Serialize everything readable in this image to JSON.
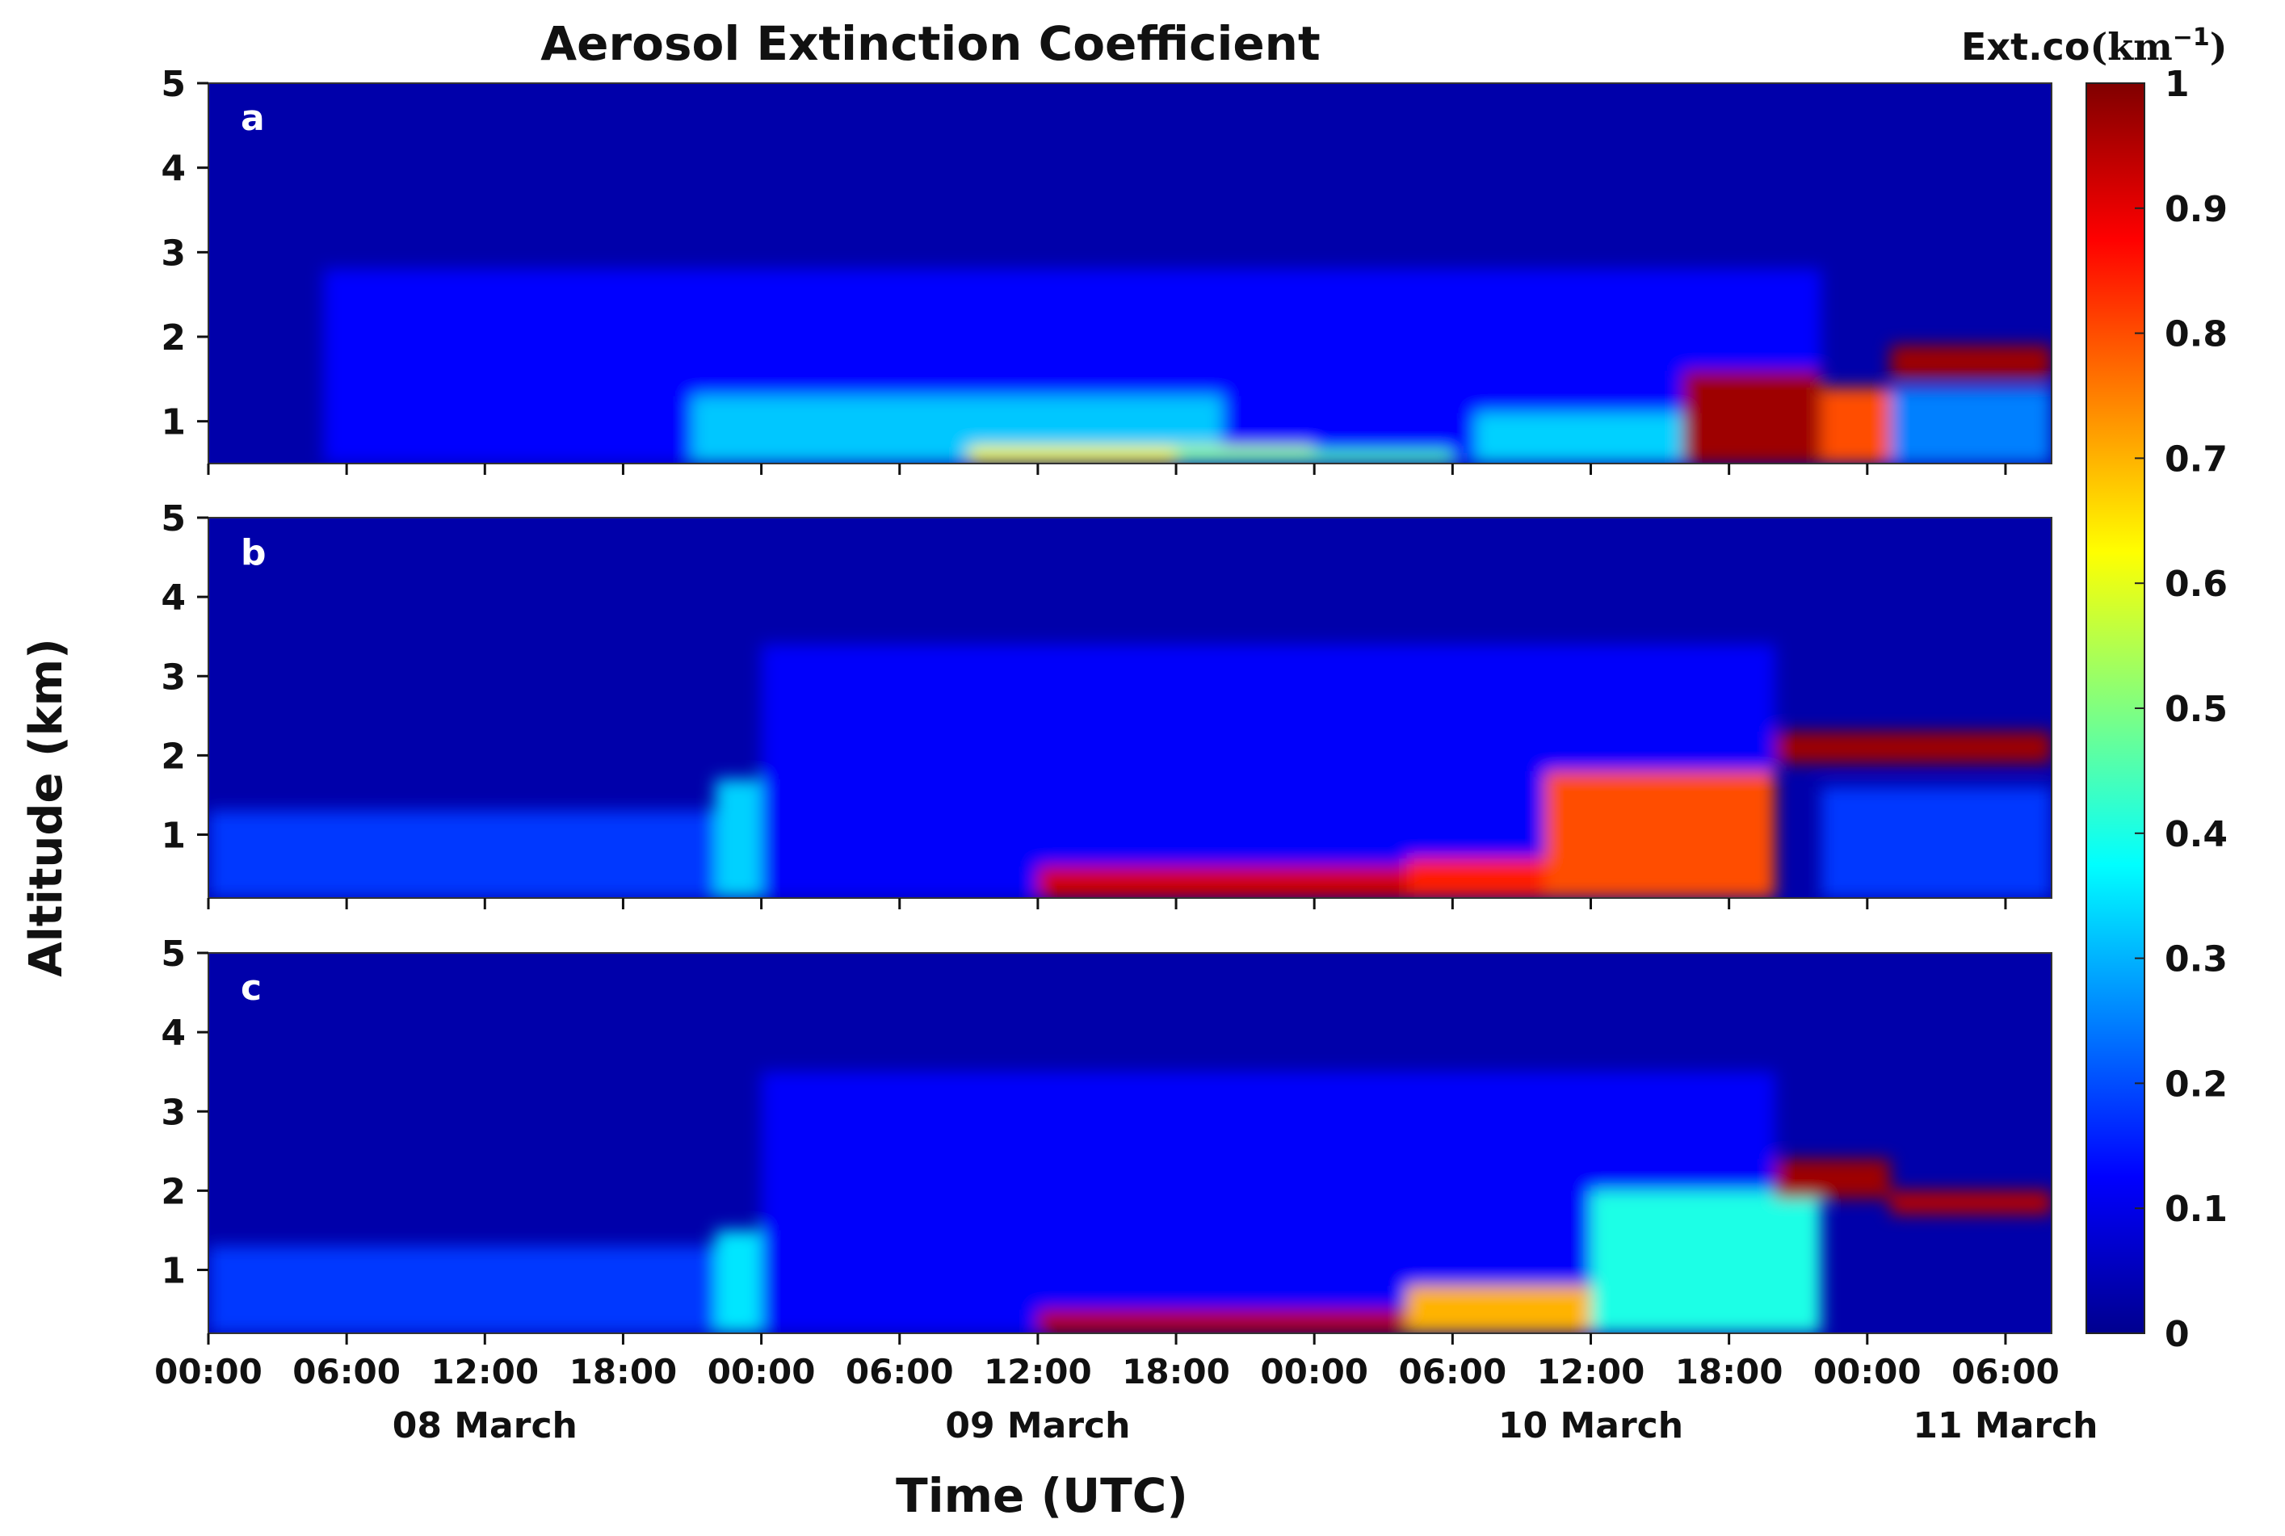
{
  "chart_data": {
    "type": "heatmap",
    "title": "Aerosol Extinction Coefficient",
    "xlabel": "Time (UTC)",
    "ylabel": "Altitude (km)",
    "colorbar": {
      "label_prefix": "Ext.co",
      "label_unit": "(km",
      "label_exp": "−1",
      "label_close": ")",
      "range": [
        0,
        1
      ],
      "ticks": [
        0,
        0.1,
        0.2,
        0.3,
        0.4,
        0.5,
        0.6,
        0.7,
        0.8,
        0.9,
        1
      ],
      "tick_labels": [
        "0",
        "0.1",
        "0.2",
        "0.3",
        "0.4",
        "0.5",
        "0.6",
        "0.7",
        "0.8",
        "0.9",
        "1"
      ],
      "colormap": "jet",
      "stops": [
        "#00008f",
        "#0000ff",
        "#0080ff",
        "#00ffff",
        "#80ff80",
        "#ffff00",
        "#ff8000",
        "#ff0000",
        "#800000"
      ]
    },
    "x_range_hours": [
      0,
      80
    ],
    "x_ticks_hours": [
      0,
      6,
      12,
      18,
      24,
      30,
      36,
      42,
      48,
      54,
      60,
      66,
      72,
      78
    ],
    "x_tick_labels": [
      "00:00",
      "06:00",
      "12:00",
      "18:00",
      "00:00",
      "06:00",
      "12:00",
      "18:00",
      "00:00",
      "06:00",
      "12:00",
      "18:00",
      "00:00",
      "06:00"
    ],
    "date_labels": [
      {
        "label": "08 March",
        "hour": 12
      },
      {
        "label": "09 March",
        "hour": 36
      },
      {
        "label": "10 March",
        "hour": 60
      },
      {
        "label": "11 March",
        "hour": 78
      }
    ],
    "y_range_km": [
      0.2,
      5
    ],
    "y_ticks_km": [
      1,
      2,
      3,
      4,
      5
    ],
    "y_tick_labels": [
      "1",
      "2",
      "3",
      "4",
      "5"
    ],
    "panels": [
      {
        "label": "a",
        "bottom_km": 0.5,
        "background_value": 0.03,
        "features": [
          {
            "desc": "diffuse layer up to ~3 km",
            "t0": 5,
            "t1": 70,
            "z0": 0.5,
            "z1": 2.8,
            "value": 0.13
          },
          {
            "desc": "boundary layer aerosol",
            "t0": 21,
            "t1": 44,
            "z0": 0.5,
            "z1": 1.3,
            "value": 0.32
          },
          {
            "desc": "near-surface layer",
            "t0": 33,
            "t1": 48,
            "z0": 0.5,
            "z1": 0.7,
            "value": 0.62
          },
          {
            "desc": "near-surface layer",
            "t0": 42,
            "t1": 54,
            "z0": 0.5,
            "z1": 0.65,
            "value": 0.45
          },
          {
            "desc": "lofted aerosol",
            "t0": 55,
            "t1": 64,
            "z0": 0.5,
            "z1": 1.1,
            "value": 0.33
          },
          {
            "desc": "dense aerosol plume",
            "t0": 64,
            "t1": 70,
            "z0": 0.5,
            "z1": 1.6,
            "value": 0.97
          },
          {
            "desc": "dense aerosol plume",
            "t0": 70,
            "t1": 74,
            "z0": 0.5,
            "z1": 1.4,
            "value": 0.8
          },
          {
            "desc": "elevated layer",
            "t0": 73,
            "t1": 80,
            "z0": 1.5,
            "z1": 1.9,
            "value": 0.97
          },
          {
            "desc": "below elevated layer",
            "t0": 73,
            "t1": 80,
            "z0": 0.5,
            "z1": 1.4,
            "value": 0.25
          }
        ]
      },
      {
        "label": "b",
        "bottom_km": 0.2,
        "background_value": 0.03,
        "features": [
          {
            "desc": "residual layer",
            "t0": 0,
            "t1": 22,
            "z0": 0.2,
            "z1": 1.3,
            "value": 0.18
          },
          {
            "desc": "residual layer",
            "t0": 22,
            "t1": 37,
            "z0": 0.2,
            "z1": 1.7,
            "value": 0.33
          },
          {
            "desc": "boundary layer aerosol",
            "t0": 28,
            "t1": 38,
            "z0": 0.2,
            "z1": 0.8,
            "value": 0.55
          },
          {
            "desc": "diffuse layer up to ~3.5 km",
            "t0": 24,
            "t1": 68,
            "z0": 0.2,
            "z1": 3.4,
            "value": 0.12
          },
          {
            "desc": "heavy near-surface aerosol",
            "t0": 36,
            "t1": 52,
            "z0": 0.2,
            "z1": 0.6,
            "value": 0.92
          },
          {
            "desc": "heavy near-surface aerosol",
            "t0": 52,
            "t1": 62,
            "z0": 0.2,
            "z1": 0.7,
            "value": 0.85
          },
          {
            "desc": "rising aerosol layer",
            "t0": 58,
            "t1": 68,
            "z0": 0.2,
            "z1": 1.8,
            "value": 0.8
          },
          {
            "desc": "elevated layer",
            "t0": 68,
            "t1": 80,
            "z0": 1.9,
            "z1": 2.3,
            "value": 0.97
          },
          {
            "desc": "below elevated layer",
            "t0": 70,
            "t1": 80,
            "z0": 0.2,
            "z1": 1.6,
            "value": 0.18
          }
        ]
      },
      {
        "label": "c",
        "bottom_km": 0.2,
        "background_value": 0.03,
        "features": [
          {
            "desc": "residual layer",
            "t0": 0,
            "t1": 22,
            "z0": 0.2,
            "z1": 1.3,
            "value": 0.18
          },
          {
            "desc": "residual layer",
            "t0": 22,
            "t1": 40,
            "z0": 0.2,
            "z1": 1.5,
            "value": 0.35
          },
          {
            "desc": "boundary layer aerosol",
            "t0": 28,
            "t1": 44,
            "z0": 0.2,
            "z1": 0.7,
            "value": 0.62
          },
          {
            "desc": "diffuse layer up to ~3.5 km",
            "t0": 24,
            "t1": 68,
            "z0": 0.2,
            "z1": 3.5,
            "value": 0.12
          },
          {
            "desc": "heavy near-surface aerosol",
            "t0": 36,
            "t1": 60,
            "z0": 0.2,
            "z1": 0.5,
            "value": 0.95
          },
          {
            "desc": "near-surface aerosol",
            "t0": 52,
            "t1": 64,
            "z0": 0.2,
            "z1": 0.8,
            "value": 0.7
          },
          {
            "desc": "rising aerosol layer",
            "t0": 60,
            "t1": 70,
            "z0": 0.2,
            "z1": 2.0,
            "value": 0.4
          },
          {
            "desc": "elevated layer",
            "t0": 68,
            "t1": 73,
            "z0": 1.9,
            "z1": 2.4,
            "value": 0.97
          },
          {
            "desc": "elevated layer",
            "t0": 73,
            "t1": 80,
            "z0": 1.7,
            "z1": 2.0,
            "value": 0.95
          }
        ]
      }
    ]
  }
}
